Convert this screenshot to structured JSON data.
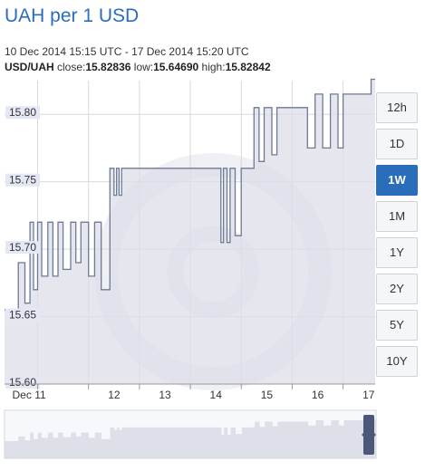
{
  "header": {
    "title": "UAH per 1 USD",
    "range": "10 Dec 2014 15:15 UTC - 17 Dec 2014 15:20 UTC",
    "pair": "USD/UAH",
    "close_label": "close:",
    "close": "15.82836",
    "low_label": "low:",
    "low": "15.64690",
    "high_label": "high:",
    "high": "15.82842"
  },
  "range_buttons": [
    {
      "label": "12h",
      "active": false
    },
    {
      "label": "1D",
      "active": false
    },
    {
      "label": "1W",
      "active": true
    },
    {
      "label": "1M",
      "active": false
    },
    {
      "label": "1Y",
      "active": false
    },
    {
      "label": "2Y",
      "active": false
    },
    {
      "label": "5Y",
      "active": false
    },
    {
      "label": "10Y",
      "active": false
    }
  ],
  "colors": {
    "line": "#6d7a95",
    "fill": "#dcdee8",
    "grid": "#d9d9d9",
    "label_bg": "#e4e7f4",
    "accent": "#2a6ebb",
    "handle": "#4b587a"
  },
  "chart_data": {
    "type": "area",
    "title": "UAH per 1 USD",
    "x_ticks": [
      "Dec 11",
      "12",
      "13",
      "14",
      "15",
      "16",
      "17"
    ],
    "y_ticks": [
      15.6,
      15.65,
      15.7,
      15.75,
      15.8
    ],
    "ylim": [
      15.6,
      15.825
    ],
    "xlim": [
      10.35,
      17.63
    ],
    "grid": true,
    "series": [
      {
        "x": [
          10.35,
          10.62,
          10.62,
          10.75,
          10.75,
          10.85,
          10.85,
          10.92,
          10.92,
          11.0,
          11.0,
          11.08,
          11.08,
          11.2,
          11.2,
          11.3,
          11.3,
          11.4,
          11.4,
          11.5,
          11.5,
          11.65,
          11.65,
          11.75,
          11.75,
          11.85,
          11.85,
          12.0,
          12.0,
          12.12,
          12.12,
          12.25,
          12.25,
          12.42,
          12.42,
          12.5,
          12.5,
          12.55,
          12.55,
          12.6,
          12.6,
          12.65,
          12.65,
          13.0,
          13.0,
          13.5,
          13.5,
          14.0,
          14.0,
          14.5,
          14.5,
          14.6,
          14.6,
          14.65,
          14.65,
          14.72,
          14.72,
          14.78,
          14.78,
          14.88,
          14.88,
          15.0,
          15.0,
          15.25,
          15.25,
          15.35,
          15.35,
          15.45,
          15.45,
          15.6,
          15.6,
          15.7,
          15.7,
          16.0,
          16.0,
          16.3,
          16.3,
          16.45,
          16.45,
          16.6,
          16.6,
          16.75,
          16.75,
          16.9,
          16.9,
          17.0,
          17.0,
          17.2,
          17.2,
          17.55,
          17.55,
          17.63
        ],
        "y": [
          15.655,
          15.655,
          15.69,
          15.69,
          15.66,
          15.66,
          15.72,
          15.72,
          15.67,
          15.67,
          15.72,
          15.72,
          15.68,
          15.68,
          15.72,
          15.72,
          15.68,
          15.68,
          15.72,
          15.72,
          15.685,
          15.685,
          15.72,
          15.72,
          15.69,
          15.69,
          15.72,
          15.72,
          15.68,
          15.68,
          15.72,
          15.72,
          15.67,
          15.67,
          15.76,
          15.76,
          15.74,
          15.74,
          15.76,
          15.76,
          15.74,
          15.74,
          15.76,
          15.76,
          15.76,
          15.76,
          15.76,
          15.76,
          15.76,
          15.76,
          15.76,
          15.76,
          15.705,
          15.705,
          15.76,
          15.76,
          15.705,
          15.705,
          15.76,
          15.76,
          15.71,
          15.71,
          15.76,
          15.76,
          15.805,
          15.805,
          15.765,
          15.765,
          15.805,
          15.805,
          15.77,
          15.77,
          15.805,
          15.805,
          15.805,
          15.805,
          15.775,
          15.775,
          15.815,
          15.815,
          15.775,
          15.775,
          15.815,
          15.815,
          15.775,
          15.775,
          15.815,
          15.815,
          15.815,
          15.815,
          15.826,
          15.826
        ]
      }
    ]
  }
}
